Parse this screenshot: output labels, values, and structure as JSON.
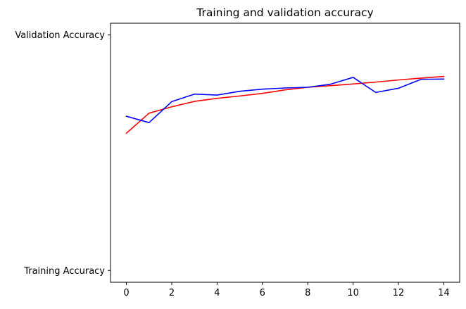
{
  "chart_data": {
    "type": "line",
    "title": "Training and validation accuracy",
    "xlabel": "",
    "ylabel": "",
    "x": [
      0,
      1,
      2,
      3,
      4,
      5,
      6,
      7,
      8,
      9,
      10,
      11,
      12,
      13,
      14
    ],
    "xlim": [
      -0.7,
      14.7
    ],
    "x_ticks": [
      0,
      2,
      4,
      6,
      8,
      10,
      12,
      14
    ],
    "ylim": [
      -0.05,
      1.05
    ],
    "y_ticks": [
      {
        "value": 0,
        "label": "Training Accuracy"
      },
      {
        "value": 1,
        "label": "Validation Accuracy"
      }
    ],
    "grid": false,
    "series": [
      {
        "color": "#ff0000",
        "values": [
          0.583,
          0.668,
          0.695,
          0.718,
          0.731,
          0.741,
          0.752,
          0.767,
          0.778,
          0.785,
          0.792,
          0.8,
          0.809,
          0.817,
          0.824
        ]
      },
      {
        "color": "#0000ff",
        "values": [
          0.655,
          0.628,
          0.717,
          0.749,
          0.745,
          0.761,
          0.77,
          0.775,
          0.778,
          0.791,
          0.82,
          0.756,
          0.774,
          0.812,
          0.813
        ]
      }
    ]
  }
}
